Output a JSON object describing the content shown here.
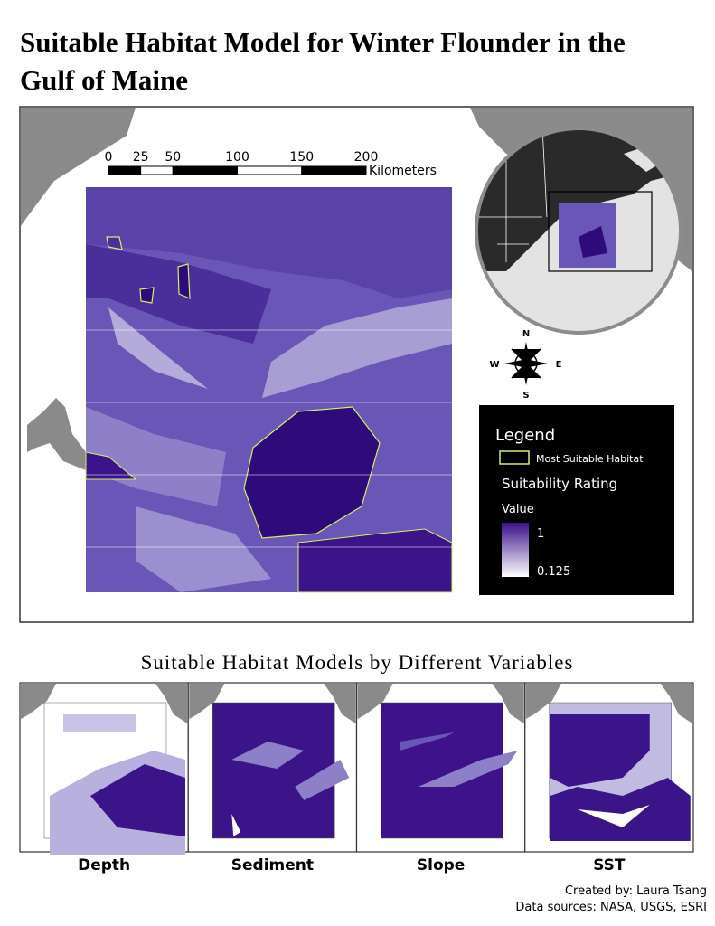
{
  "title": "Suitable Habitat Model for Winter Flounder in the Gulf of Maine",
  "scale_bar": {
    "ticks": [
      0,
      25,
      50,
      100,
      150,
      200
    ],
    "unit": "Kilometers"
  },
  "compass": {
    "north": "N",
    "south": "S",
    "east": "E",
    "west": "W"
  },
  "legend": {
    "title": "Legend",
    "habitat": "Most Suitable Habitat",
    "rating": "Suitability Rating",
    "field": "Value",
    "max": 1,
    "min": 0.125
  },
  "subtitle": "Suitable Habitat Models by Different Variables",
  "panels": [
    {
      "label": "Depth"
    },
    {
      "label": "Sediment"
    },
    {
      "label": "Slope"
    },
    {
      "label": "SST"
    }
  ],
  "credits": {
    "author": "Created by: Laura Tsang",
    "sources": "Data sources: NASA, USGS, ESRI"
  }
}
